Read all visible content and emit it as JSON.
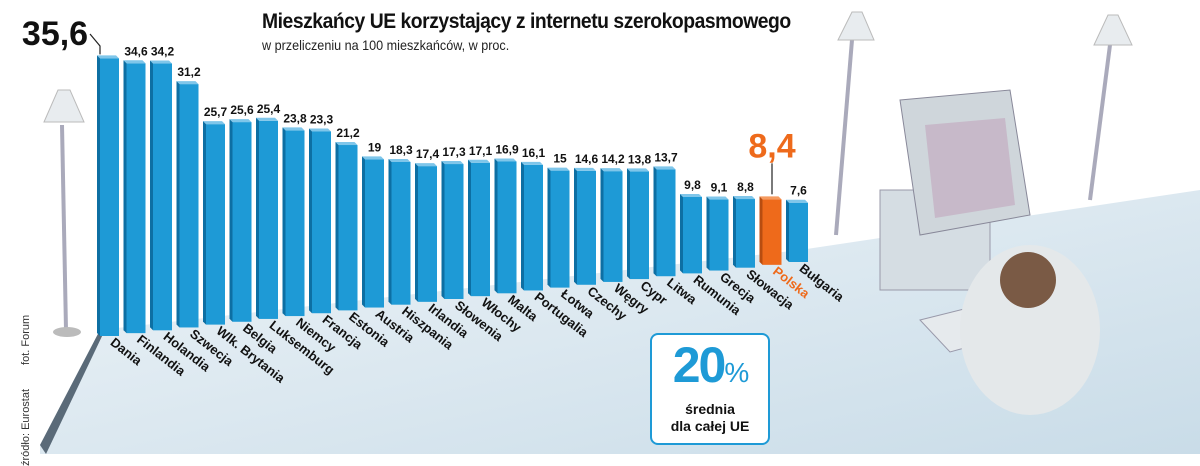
{
  "chart_data": {
    "type": "bar",
    "title": "Mieszkańcy UE korzystający z internetu szerokopasmowego",
    "subtitle": "w przeliczeniu na 100 mieszkańców, w proc.",
    "categories": [
      "Dania",
      "Finlandia",
      "Holandia",
      "Szwecja",
      "Wlk. Brytania",
      "Belgia",
      "Luksemburg",
      "Niemcy",
      "Francja",
      "Estonia",
      "Austria",
      "Hiszpania",
      "Irlandia",
      "Słowenia",
      "Włochy",
      "Malta",
      "Portugalia",
      "Łotwa",
      "Czechy",
      "Węgry",
      "Cypr",
      "Litwa",
      "Rumunia",
      "Grecja",
      "Słowacja",
      "Polska",
      "Bułgaria"
    ],
    "values": [
      35.6,
      34.6,
      34.2,
      31.2,
      25.7,
      25.6,
      25.4,
      23.8,
      23.3,
      21.2,
      19,
      18.3,
      17.4,
      17.3,
      17.1,
      16.9,
      16.1,
      15,
      14.6,
      14.2,
      13.8,
      13.7,
      9.8,
      9.1,
      8.8,
      8.4,
      7.6
    ],
    "labels": [
      "35,6",
      "34,6",
      "34,2",
      "31,2",
      "25,7",
      "25,6",
      "25,4",
      "23,8",
      "23,3",
      "21,2",
      "19",
      "18,3",
      "17,4",
      "17,3",
      "17,1",
      "16,9",
      "16,1",
      "15",
      "14,6",
      "14,2",
      "13,8",
      "13,7",
      "9,8",
      "9,1",
      "8,8",
      "8,4",
      "7,6"
    ],
    "highlight": "Polska",
    "colors": {
      "bar": "#1e9ad6",
      "highlight": "#ee6a1b"
    }
  },
  "average": {
    "value": "20",
    "unit": "%",
    "label1": "średnia",
    "label2": "dla całej UE"
  },
  "source": "źródło: Eurostat",
  "photo": "fot. Forum"
}
